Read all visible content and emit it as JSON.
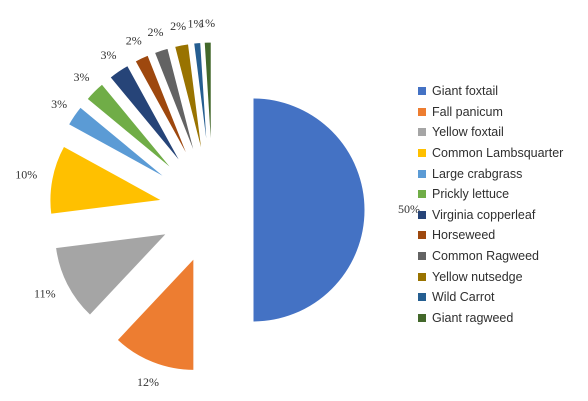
{
  "chart_data": {
    "type": "pie",
    "title": "",
    "exploded": true,
    "legend_position": "right",
    "slices": [
      {
        "label": "Giant foxtail",
        "value": 50,
        "display": "50%",
        "color": "#4472C4"
      },
      {
        "label": "Fall panicum",
        "value": 12,
        "display": "12%",
        "color": "#ED7D31"
      },
      {
        "label": "Yellow foxtail",
        "value": 11,
        "display": "11%",
        "color": "#A5A5A5"
      },
      {
        "label": "Common Lambsquarter",
        "value": 10,
        "display": "10%",
        "color": "#FFC000"
      },
      {
        "label": "Large crabgrass",
        "value": 3,
        "display": "3%",
        "color": "#5B9BD5"
      },
      {
        "label": "Prickly lettuce",
        "value": 3,
        "display": "3%",
        "color": "#70AD47"
      },
      {
        "label": "Virginia copperleaf",
        "value": 3,
        "display": "3%",
        "color": "#264478"
      },
      {
        "label": "Horseweed",
        "value": 2,
        "display": "2%",
        "color": "#9E480E"
      },
      {
        "label": "Common Ragweed",
        "value": 2,
        "display": "2%",
        "color": "#636363"
      },
      {
        "label": "Yellow nutsedge",
        "value": 2,
        "display": "2%",
        "color": "#997300"
      },
      {
        "label": "Wild Carrot",
        "value": 1,
        "display": "1%",
        "color": "#255E91"
      },
      {
        "label": "Giant ragweed",
        "value": 1,
        "display": "1%",
        "color": "#43682B"
      }
    ]
  }
}
